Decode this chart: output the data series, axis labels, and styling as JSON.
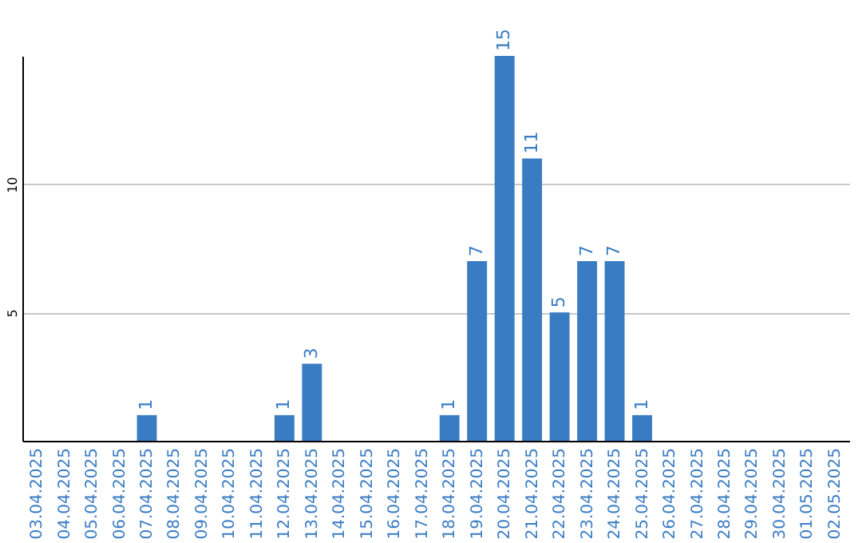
{
  "chart_data": {
    "type": "bar",
    "categories": [
      "03.04.2025",
      "04.04.2025",
      "05.04.2025",
      "06.04.2025",
      "07.04.2025",
      "08.04.2025",
      "09.04.2025",
      "10.04.2025",
      "11.04.2025",
      "12.04.2025",
      "13.04.2025",
      "14.04.2025",
      "15.04.2025",
      "16.04.2025",
      "17.04.2025",
      "18.04.2025",
      "19.04.2025",
      "20.04.2025",
      "21.04.2025",
      "22.04.2025",
      "23.04.2025",
      "24.04.2025",
      "25.04.2025",
      "26.04.2025",
      "27.04.2025",
      "28.04.2025",
      "29.04.2025",
      "30.04.2025",
      "01.05.2025",
      "02.05.2025"
    ],
    "values": [
      0,
      0,
      0,
      0,
      1,
      0,
      0,
      0,
      0,
      1,
      3,
      0,
      0,
      0,
      0,
      1,
      7,
      15,
      11,
      5,
      7,
      7,
      1,
      0,
      0,
      0,
      0,
      0,
      0,
      0
    ],
    "value_labels": [
      null,
      null,
      null,
      null,
      "1",
      null,
      null,
      null,
      null,
      "1",
      "3",
      null,
      null,
      null,
      null,
      "1",
      "7",
      "15",
      "11",
      "5",
      "7",
      "7",
      "1",
      null,
      null,
      null,
      null,
      null,
      null,
      null
    ],
    "color": "#3a7cc4",
    "ylim": [
      0,
      15
    ],
    "yticks": [
      5,
      10
    ],
    "grid": "y"
  }
}
